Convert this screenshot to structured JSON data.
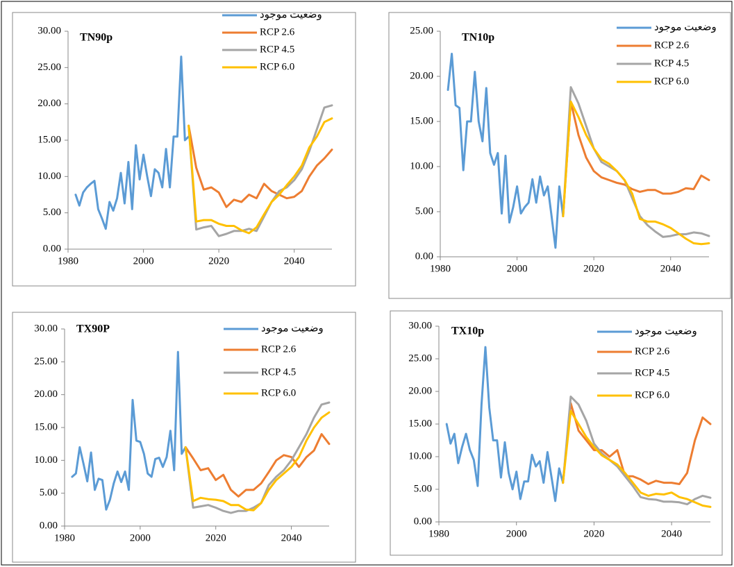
{
  "chart_data": [
    {
      "type": "line",
      "title": "TN90p",
      "xlim": [
        1980,
        2050
      ],
      "xticks": [
        1980,
        2000,
        2020,
        2040
      ],
      "ylim": [
        0,
        30
      ],
      "yticks": [
        {
          "value": 0,
          "label": "0.00"
        },
        {
          "value": 5,
          "label": "5.00"
        },
        {
          "value": 10,
          "label": "10.00"
        },
        {
          "value": 15,
          "label": "15.00"
        },
        {
          "value": 20,
          "label": "20.00"
        },
        {
          "value": 25,
          "label": "25.00"
        },
        {
          "value": 30,
          "label": "30.00"
        }
      ],
      "series": [
        {
          "name": "وضعيت موجود",
          "color": "#5b9bd5",
          "x": [
            1982,
            1983,
            1984,
            1985,
            1986,
            1987,
            1988,
            1989,
            1990,
            1991,
            1992,
            1993,
            1994,
            1995,
            1996,
            1997,
            1998,
            1999,
            2000,
            2001,
            2002,
            2003,
            2004,
            2005,
            2006,
            2007,
            2008,
            2009,
            2010,
            2011,
            2012
          ],
          "values": [
            7.5,
            6,
            7.8,
            8.5,
            9,
            9.4,
            5.5,
            4.2,
            2.8,
            6.5,
            5.3,
            7,
            10.5,
            6.3,
            12,
            5.5,
            14.3,
            9.6,
            13,
            10,
            7.3,
            11,
            10.5,
            8.5,
            13.8,
            8.5,
            15.5,
            15.5,
            26.5,
            15,
            15.5
          ]
        },
        {
          "name": "RCP 2.6",
          "color": "#ed7d31",
          "x": [
            2012,
            2014,
            2016,
            2018,
            2020,
            2022,
            2024,
            2026,
            2028,
            2030,
            2032,
            2034,
            2036,
            2038,
            2040,
            2042,
            2044,
            2046,
            2048,
            2050
          ],
          "values": [
            17,
            11.2,
            8.2,
            8.5,
            7.8,
            5.8,
            6.8,
            6.5,
            7.5,
            7,
            9,
            8,
            7.5,
            7,
            7.2,
            8,
            10,
            11.5,
            12.5,
            13.7
          ]
        },
        {
          "name": "RCP 4.5",
          "color": "#a5a5a5",
          "x": [
            2012,
            2014,
            2016,
            2018,
            2020,
            2022,
            2024,
            2026,
            2028,
            2030,
            2032,
            2034,
            2036,
            2038,
            2040,
            2042,
            2044,
            2046,
            2048,
            2050
          ],
          "values": [
            17,
            2.7,
            3,
            3.2,
            1.8,
            2.1,
            2.5,
            2.5,
            2.8,
            2.5,
            4.5,
            6.5,
            8,
            8.5,
            9.5,
            11,
            13.5,
            16.5,
            19.5,
            19.8
          ]
        },
        {
          "name": "RCP 6.0",
          "color": "#ffc000",
          "x": [
            2012,
            2014,
            2016,
            2018,
            2020,
            2022,
            2024,
            2026,
            2028,
            2030,
            2032,
            2034,
            2036,
            2038,
            2040,
            2042,
            2044,
            2046,
            2048,
            2050
          ],
          "values": [
            17,
            3.8,
            4,
            4,
            3.5,
            3.2,
            3.2,
            2.6,
            2.2,
            3,
            4.8,
            6.5,
            7.5,
            8.8,
            10,
            11.5,
            14,
            15.5,
            17.5,
            18
          ]
        }
      ]
    },
    {
      "type": "line",
      "title": "TN10p",
      "xlim": [
        1980,
        2050
      ],
      "xticks": [
        1980,
        2000,
        2020,
        2040
      ],
      "ylim": [
        0,
        25
      ],
      "yticks": [
        {
          "value": 0,
          "label": "0.00"
        },
        {
          "value": 5,
          "label": "5.00"
        },
        {
          "value": 10,
          "label": "10.00"
        },
        {
          "value": 15,
          "label": "15.00"
        },
        {
          "value": 20,
          "label": "20.00"
        },
        {
          "value": 25,
          "label": "25.00"
        }
      ],
      "series": [
        {
          "name": "وضعيت موجود",
          "color": "#5b9bd5",
          "x": [
            1982,
            1983,
            1984,
            1985,
            1986,
            1987,
            1988,
            1989,
            1990,
            1991,
            1992,
            1993,
            1994,
            1995,
            1996,
            1997,
            1998,
            1999,
            2000,
            2001,
            2002,
            2003,
            2004,
            2005,
            2006,
            2007,
            2008,
            2009,
            2010,
            2011,
            2012
          ],
          "values": [
            18.5,
            22.5,
            16.8,
            16.5,
            9.6,
            15,
            15,
            20.5,
            15,
            12.8,
            18.7,
            11.5,
            10.2,
            11.5,
            4.8,
            11.2,
            3.8,
            5.5,
            7.8,
            4.8,
            5.5,
            6,
            8.6,
            6,
            8.9,
            6.8,
            7.8,
            4.5,
            1,
            7.8,
            4.5
          ]
        },
        {
          "name": "RCP 2.6",
          "color": "#ed7d31",
          "x": [
            2012,
            2014,
            2016,
            2018,
            2020,
            2022,
            2024,
            2026,
            2028,
            2030,
            2032,
            2034,
            2036,
            2038,
            2040,
            2042,
            2044,
            2046,
            2048,
            2050
          ],
          "values": [
            4.5,
            17.2,
            13.5,
            11,
            9.5,
            8.8,
            8.5,
            8.2,
            8,
            7.5,
            7.2,
            7.4,
            7.4,
            7,
            7,
            7.2,
            7.6,
            7.5,
            9,
            8.5
          ]
        },
        {
          "name": "RCP 4.5",
          "color": "#a5a5a5",
          "x": [
            2012,
            2014,
            2016,
            2018,
            2020,
            2022,
            2024,
            2026,
            2028,
            2030,
            2032,
            2034,
            2036,
            2038,
            2040,
            2042,
            2044,
            2046,
            2048,
            2050
          ],
          "values": [
            4.5,
            18.8,
            17,
            14.5,
            12,
            10.5,
            10,
            9.5,
            8.5,
            6.5,
            4.5,
            3.5,
            2.8,
            2.2,
            2.3,
            2.5,
            2.5,
            2.7,
            2.6,
            2.3
          ]
        },
        {
          "name": "RCP 6.0",
          "color": "#ffc000",
          "x": [
            2012,
            2014,
            2016,
            2018,
            2020,
            2022,
            2024,
            2026,
            2028,
            2030,
            2032,
            2034,
            2036,
            2038,
            2040,
            2042,
            2044,
            2046,
            2048,
            2050
          ],
          "values": [
            4.5,
            17.2,
            15.5,
            13.5,
            12,
            10.8,
            10.3,
            9.5,
            8.5,
            7,
            4.2,
            3.9,
            3.9,
            3.6,
            3.2,
            2.6,
            2,
            1.5,
            1.4,
            1.5
          ]
        }
      ]
    },
    {
      "type": "line",
      "title": "TX90P",
      "xlim": [
        1980,
        2050
      ],
      "xticks": [
        1980,
        2000,
        2020,
        2040
      ],
      "ylim": [
        0,
        30
      ],
      "yticks": [
        {
          "value": 0,
          "label": "0.00"
        },
        {
          "value": 5,
          "label": "5.00"
        },
        {
          "value": 10,
          "label": "10.00"
        },
        {
          "value": 15,
          "label": "15.00"
        },
        {
          "value": 20,
          "label": "20.00"
        },
        {
          "value": 25,
          "label": "25.00"
        },
        {
          "value": 30,
          "label": "30.00"
        }
      ],
      "series": [
        {
          "name": "وضعيت موجود",
          "color": "#5b9bd5",
          "x": [
            1982,
            1983,
            1984,
            1985,
            1986,
            1987,
            1988,
            1989,
            1990,
            1991,
            1992,
            1993,
            1994,
            1995,
            1996,
            1997,
            1998,
            1999,
            2000,
            2001,
            2002,
            2003,
            2004,
            2005,
            2006,
            2007,
            2008,
            2009,
            2010,
            2011,
            2012
          ],
          "values": [
            7.5,
            8,
            12,
            9.5,
            6.8,
            11.2,
            5.5,
            7.2,
            7,
            2.5,
            4,
            6.5,
            8.3,
            6.7,
            8.3,
            5.5,
            19.2,
            13,
            12.8,
            11,
            8,
            7.5,
            10.2,
            10.4,
            9,
            10.5,
            14.5,
            8.5,
            26.5,
            11,
            12
          ]
        },
        {
          "name": "RCP 2.6",
          "color": "#ed7d31",
          "x": [
            2012,
            2014,
            2016,
            2018,
            2020,
            2022,
            2024,
            2026,
            2028,
            2030,
            2032,
            2034,
            2036,
            2038,
            2040,
            2042,
            2044,
            2046,
            2048,
            2050
          ],
          "values": [
            12,
            10.3,
            8.5,
            8.8,
            7,
            7.8,
            5.5,
            4.5,
            5.5,
            5.5,
            6.5,
            8.2,
            10,
            10.8,
            10.5,
            9,
            10.5,
            11.5,
            14,
            12.5
          ]
        },
        {
          "name": "RCP 4.5",
          "color": "#a5a5a5",
          "x": [
            2012,
            2014,
            2016,
            2018,
            2020,
            2022,
            2024,
            2026,
            2028,
            2030,
            2032,
            2034,
            2036,
            2038,
            2040,
            2042,
            2044,
            2046,
            2048,
            2050
          ],
          "values": [
            12,
            2.8,
            3,
            3.2,
            2.8,
            2.3,
            2,
            2.3,
            2.3,
            2.8,
            3.5,
            6.2,
            7.5,
            8.5,
            10,
            12,
            14,
            16.5,
            18.5,
            18.8
          ]
        },
        {
          "name": "RCP 6.0",
          "color": "#ffc000",
          "x": [
            2012,
            2014,
            2016,
            2018,
            2020,
            2022,
            2024,
            2026,
            2028,
            2030,
            2032,
            2034,
            2036,
            2038,
            2040,
            2042,
            2044,
            2046,
            2048,
            2050
          ],
          "values": [
            12,
            3.8,
            4.3,
            4.1,
            4,
            3.8,
            3.2,
            3.2,
            2.5,
            2.4,
            3.5,
            5.5,
            7,
            8,
            9,
            10.5,
            13,
            15,
            16.5,
            17.3
          ]
        }
      ]
    },
    {
      "type": "line",
      "title": "TX10p",
      "xlim": [
        1980,
        2050
      ],
      "xticks": [
        1980,
        2000,
        2020,
        2040
      ],
      "ylim": [
        0,
        30
      ],
      "yticks": [
        {
          "value": 0,
          "label": "0.00"
        },
        {
          "value": 5,
          "label": "5.00"
        },
        {
          "value": 10,
          "label": "10.00"
        },
        {
          "value": 15,
          "label": "15.00"
        },
        {
          "value": 20,
          "label": "20.00"
        },
        {
          "value": 25,
          "label": "25.00"
        },
        {
          "value": 30,
          "label": "30.00"
        }
      ],
      "series": [
        {
          "name": "وضعيت موجود",
          "color": "#5b9bd5",
          "x": [
            1982,
            1983,
            1984,
            1985,
            1986,
            1987,
            1988,
            1989,
            1990,
            1991,
            1992,
            1993,
            1994,
            1995,
            1996,
            1997,
            1998,
            1999,
            2000,
            2001,
            2002,
            2003,
            2004,
            2005,
            2006,
            2007,
            2008,
            2009,
            2010,
            2011,
            2012
          ],
          "values": [
            15,
            12,
            13.5,
            9,
            11.5,
            13.5,
            11,
            9.5,
            5.5,
            18,
            26.8,
            17.5,
            12.5,
            12.5,
            6.8,
            12.2,
            7.5,
            5,
            7.7,
            3.5,
            6.2,
            6.2,
            10.3,
            8.5,
            9.3,
            6,
            10.7,
            7,
            3.2,
            8.2,
            6
          ]
        },
        {
          "name": "RCP 2.6",
          "color": "#ed7d31",
          "x": [
            2012,
            2014,
            2016,
            2018,
            2020,
            2022,
            2024,
            2026,
            2028,
            2030,
            2032,
            2034,
            2036,
            2038,
            2040,
            2042,
            2044,
            2046,
            2048,
            2050
          ],
          "values": [
            6,
            18.2,
            14,
            12.5,
            11,
            11,
            10,
            11,
            7,
            7,
            6.5,
            5.8,
            6.3,
            6,
            6,
            5.8,
            7.5,
            12.5,
            16,
            15
          ]
        },
        {
          "name": "RCP 4.5",
          "color": "#a5a5a5",
          "x": [
            2012,
            2014,
            2016,
            2018,
            2020,
            2022,
            2024,
            2026,
            2028,
            2030,
            2032,
            2034,
            2036,
            2038,
            2040,
            2042,
            2044,
            2046,
            2048,
            2050
          ],
          "values": [
            6,
            19.2,
            18,
            15.5,
            12,
            10.5,
            9.5,
            8.5,
            7,
            5.5,
            3.8,
            3.5,
            3.4,
            3.1,
            3.1,
            3,
            2.7,
            3.5,
            4,
            3.7
          ]
        },
        {
          "name": "RCP 6.0",
          "color": "#ffc000",
          "x": [
            2012,
            2014,
            2016,
            2018,
            2020,
            2022,
            2024,
            2026,
            2028,
            2030,
            2032,
            2034,
            2036,
            2038,
            2040,
            2042,
            2044,
            2046,
            2048,
            2050
          ],
          "values": [
            6,
            17,
            15,
            13,
            11.5,
            10.2,
            9.5,
            8.8,
            7.5,
            6,
            4.5,
            4,
            4.3,
            4.2,
            4.5,
            3.8,
            3.5,
            3,
            2.5,
            2.3
          ]
        }
      ]
    }
  ]
}
